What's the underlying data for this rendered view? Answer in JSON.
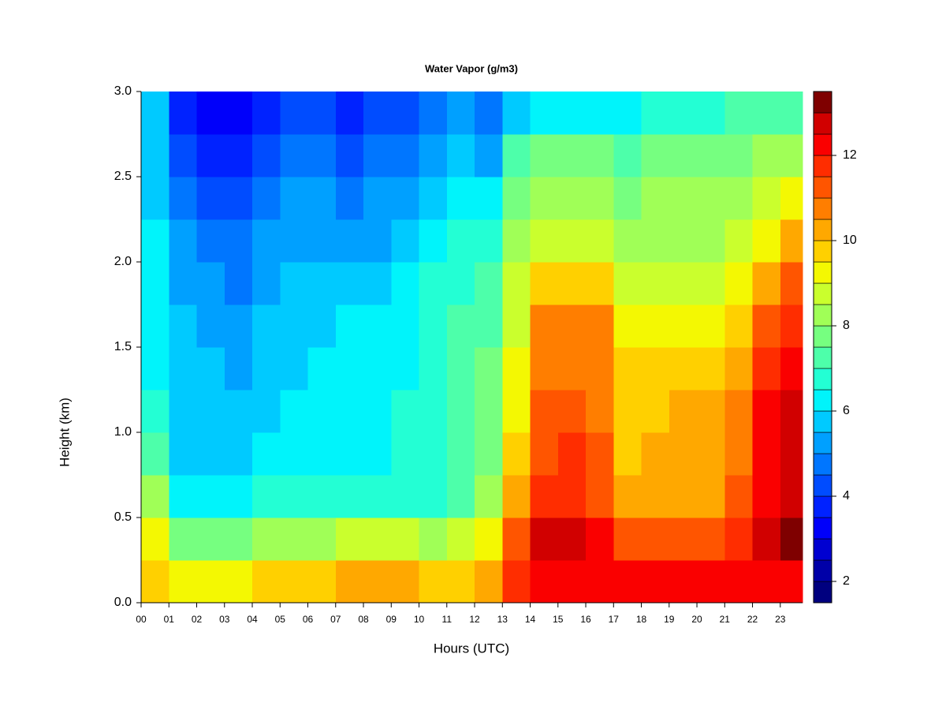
{
  "chart_data": {
    "type": "heatmap",
    "title": "Water Vapor (g/m3)",
    "x_label": "Hours (UTC)",
    "y_label": "Height (km)",
    "x": [
      0,
      1,
      2,
      3,
      4,
      5,
      6,
      7,
      8,
      9,
      10,
      11,
      12,
      13,
      14,
      15,
      16,
      17,
      18,
      19,
      20,
      21,
      22,
      23
    ],
    "y": [
      0,
      0.25,
      0.5,
      0.75,
      1,
      1.25,
      1.5,
      1.75,
      2,
      2.25,
      2.5,
      2.75
    ],
    "z": [
      [
        9.5,
        9,
        9,
        9,
        9.5,
        9.5,
        9.5,
        10,
        10,
        10,
        9.5,
        9.5,
        10,
        11.5,
        12,
        12,
        12,
        12,
        12,
        12,
        12,
        12,
        12,
        12
      ],
      [
        9,
        7.5,
        7.5,
        7.5,
        8,
        8,
        8,
        8.5,
        8.5,
        8.5,
        8,
        8.5,
        9,
        11,
        12.5,
        12.5,
        12,
        11,
        11,
        11,
        11,
        11.5,
        12.5,
        13
      ],
      [
        8,
        6,
        6,
        6,
        6.5,
        6.5,
        6.5,
        6.5,
        6.5,
        6.5,
        6.5,
        7,
        8,
        10,
        11.5,
        11.5,
        11,
        10,
        10,
        10,
        10,
        11,
        12,
        12.5
      ],
      [
        7,
        5.5,
        5.5,
        5.5,
        6,
        6,
        6,
        6,
        6,
        6.5,
        6.5,
        7,
        7.5,
        9.5,
        11,
        11.5,
        11,
        9.5,
        10,
        10,
        10,
        10.5,
        12,
        12.5
      ],
      [
        6.5,
        5.5,
        5.5,
        5.5,
        5.5,
        6,
        6,
        6,
        6,
        6.5,
        6.5,
        7,
        7.5,
        9,
        11,
        11,
        10.5,
        9.5,
        9.5,
        10,
        10,
        10.5,
        12,
        12.5
      ],
      [
        6,
        5.5,
        5.5,
        5,
        5.5,
        5.5,
        6,
        6,
        6,
        6,
        6.5,
        7,
        7.5,
        9,
        10.5,
        10.5,
        10.5,
        9.5,
        9.5,
        9.5,
        9.5,
        10,
        11.5,
        12
      ],
      [
        6,
        5.5,
        5,
        5,
        5.5,
        5.5,
        5.5,
        6,
        6,
        6,
        6.5,
        7,
        7,
        8.5,
        10.5,
        10.5,
        10.5,
        9,
        9,
        9,
        9,
        9.5,
        11,
        11.5
      ],
      [
        6,
        5,
        5,
        4.5,
        5,
        5.5,
        5.5,
        5.5,
        5.5,
        6,
        6.5,
        6.5,
        7,
        8.5,
        9.5,
        9.5,
        9.5,
        8.5,
        8.5,
        8.5,
        8.5,
        9,
        10,
        11
      ],
      [
        6,
        5,
        4.5,
        4.5,
        5,
        5,
        5,
        5,
        5,
        5.5,
        6,
        6.5,
        6.5,
        8,
        8.5,
        8.5,
        8.5,
        8,
        8,
        8,
        8,
        8.5,
        9,
        10
      ],
      [
        5.5,
        4.5,
        4,
        4,
        4.5,
        5,
        5,
        4.5,
        5,
        5,
        5.5,
        6,
        6,
        7.5,
        8,
        8,
        8,
        7.5,
        8,
        8,
        8,
        8,
        8.5,
        9
      ],
      [
        5.5,
        4,
        3.5,
        3.5,
        4,
        4.5,
        4.5,
        4,
        4.5,
        4.5,
        5,
        5.5,
        5,
        7,
        7.5,
        7.5,
        7.5,
        7,
        7.5,
        7.5,
        7.5,
        7.5,
        8,
        8
      ],
      [
        5.5,
        3.5,
        3,
        3,
        3.5,
        4,
        4,
        3.5,
        4,
        4,
        4.5,
        5,
        4.5,
        5.5,
        6,
        6,
        6,
        6,
        6.5,
        6.5,
        6.5,
        7,
        7,
        7
      ]
    ],
    "xlim": [
      0,
      23.8
    ],
    "xticks": [
      {
        "value": 0,
        "label": "00"
      },
      {
        "value": 1,
        "label": "01"
      },
      {
        "value": 2,
        "label": "02"
      },
      {
        "value": 3,
        "label": "03"
      },
      {
        "value": 4,
        "label": "04"
      },
      {
        "value": 5,
        "label": "05"
      },
      {
        "value": 6,
        "label": "06"
      },
      {
        "value": 7,
        "label": "07"
      },
      {
        "value": 8,
        "label": "08"
      },
      {
        "value": 9,
        "label": "09"
      },
      10,
      11,
      12,
      13,
      14,
      15,
      16,
      17,
      18,
      19,
      20,
      21,
      22,
      23
    ],
    "ylim": [
      0,
      3
    ],
    "yticks": [
      {
        "value": 0,
        "label": "0.0"
      },
      {
        "value": 0.5,
        "label": "0.5"
      },
      {
        "value": 1,
        "label": "1.0"
      },
      {
        "value": 1.5,
        "label": "1.5"
      },
      {
        "value": 2,
        "label": "2.0"
      },
      {
        "value": 2.5,
        "label": "2.5"
      },
      {
        "value": 3,
        "label": "3.0"
      }
    ],
    "zlim": [
      1.5,
      13.5
    ],
    "zticks": [
      2,
      4,
      6,
      8,
      10,
      12
    ],
    "colors": [
      "#00007f",
      "#0000a8",
      "#0000d1",
      "#0000fa",
      "#0022ff",
      "#004cff",
      "#0076ff",
      "#00a0ff",
      "#00caff",
      "#00f4fb",
      "#23ffd4",
      "#4dffaa",
      "#76ff80",
      "#a0ff57",
      "#caff2d",
      "#f4f802",
      "#ffd000",
      "#ffa800",
      "#ff7e00",
      "#ff5500",
      "#ff2d00",
      "#fa0000",
      "#d10000",
      "#7f0000"
    ]
  }
}
